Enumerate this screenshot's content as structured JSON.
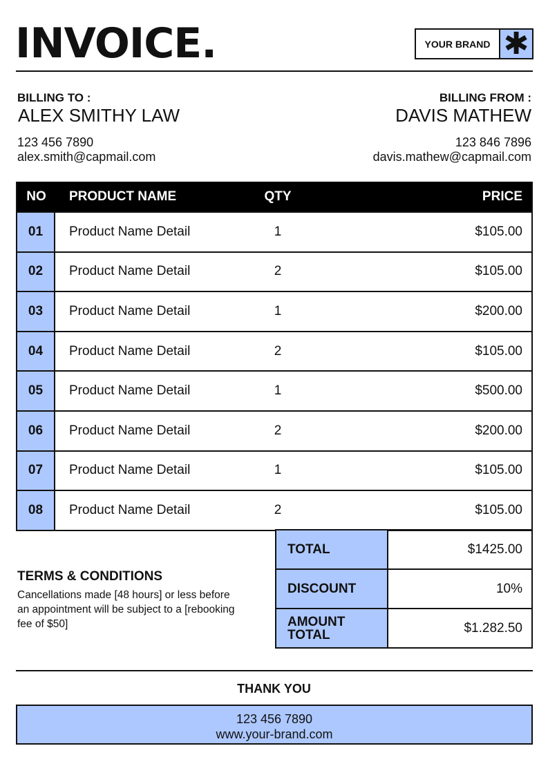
{
  "title": "INVOICE.",
  "brand": {
    "name": "YOUR BRAND",
    "icon": "asterisk-icon",
    "color": "#adc8ff"
  },
  "billing_to": {
    "label": "BILLING TO :",
    "name": "ALEX SMITHY LAW",
    "phone": "123 456 7890",
    "email": "alex.smith@capmail.com"
  },
  "billing_from": {
    "label": "BILLING FROM :",
    "name": "DAVIS MATHEW",
    "phone": "123 846 7896",
    "email": "davis.mathew@capmail.com"
  },
  "table": {
    "headers": {
      "no": "NO",
      "name": "PRODUCT NAME",
      "qty": "QTY",
      "price": "PRICE"
    },
    "rows": [
      {
        "no": "01",
        "name": "Product Name Detail",
        "qty": "1",
        "price": "$105.00"
      },
      {
        "no": "02",
        "name": "Product Name Detail",
        "qty": "2",
        "price": "$105.00"
      },
      {
        "no": "03",
        "name": "Product Name Detail",
        "qty": "1",
        "price": "$200.00"
      },
      {
        "no": "04",
        "name": "Product Name Detail",
        "qty": "2",
        "price": "$105.00"
      },
      {
        "no": "05",
        "name": "Product Name Detail",
        "qty": "1",
        "price": "$500.00"
      },
      {
        "no": "06",
        "name": "Product Name Detail",
        "qty": "2",
        "price": "$200.00"
      },
      {
        "no": "07",
        "name": "Product Name Detail",
        "qty": "1",
        "price": "$105.00"
      },
      {
        "no": "08",
        "name": "Product Name Detail",
        "qty": "2",
        "price": "$105.00"
      }
    ]
  },
  "totals": [
    {
      "label": "TOTAL",
      "value": "$1425.00"
    },
    {
      "label": "DISCOUNT",
      "value": "10%"
    },
    {
      "label": "AMOUNT TOTAL",
      "value": "$1.282.50"
    }
  ],
  "terms": {
    "title": "TERMS & CONDITIONS",
    "text": "Cancellations made [48 hours] or less before an appointment will be subject to a [rebooking fee of $50]"
  },
  "footer": {
    "thanks": "THANK YOU",
    "phone": "123 456 7890",
    "website": "www.your-brand.com"
  }
}
